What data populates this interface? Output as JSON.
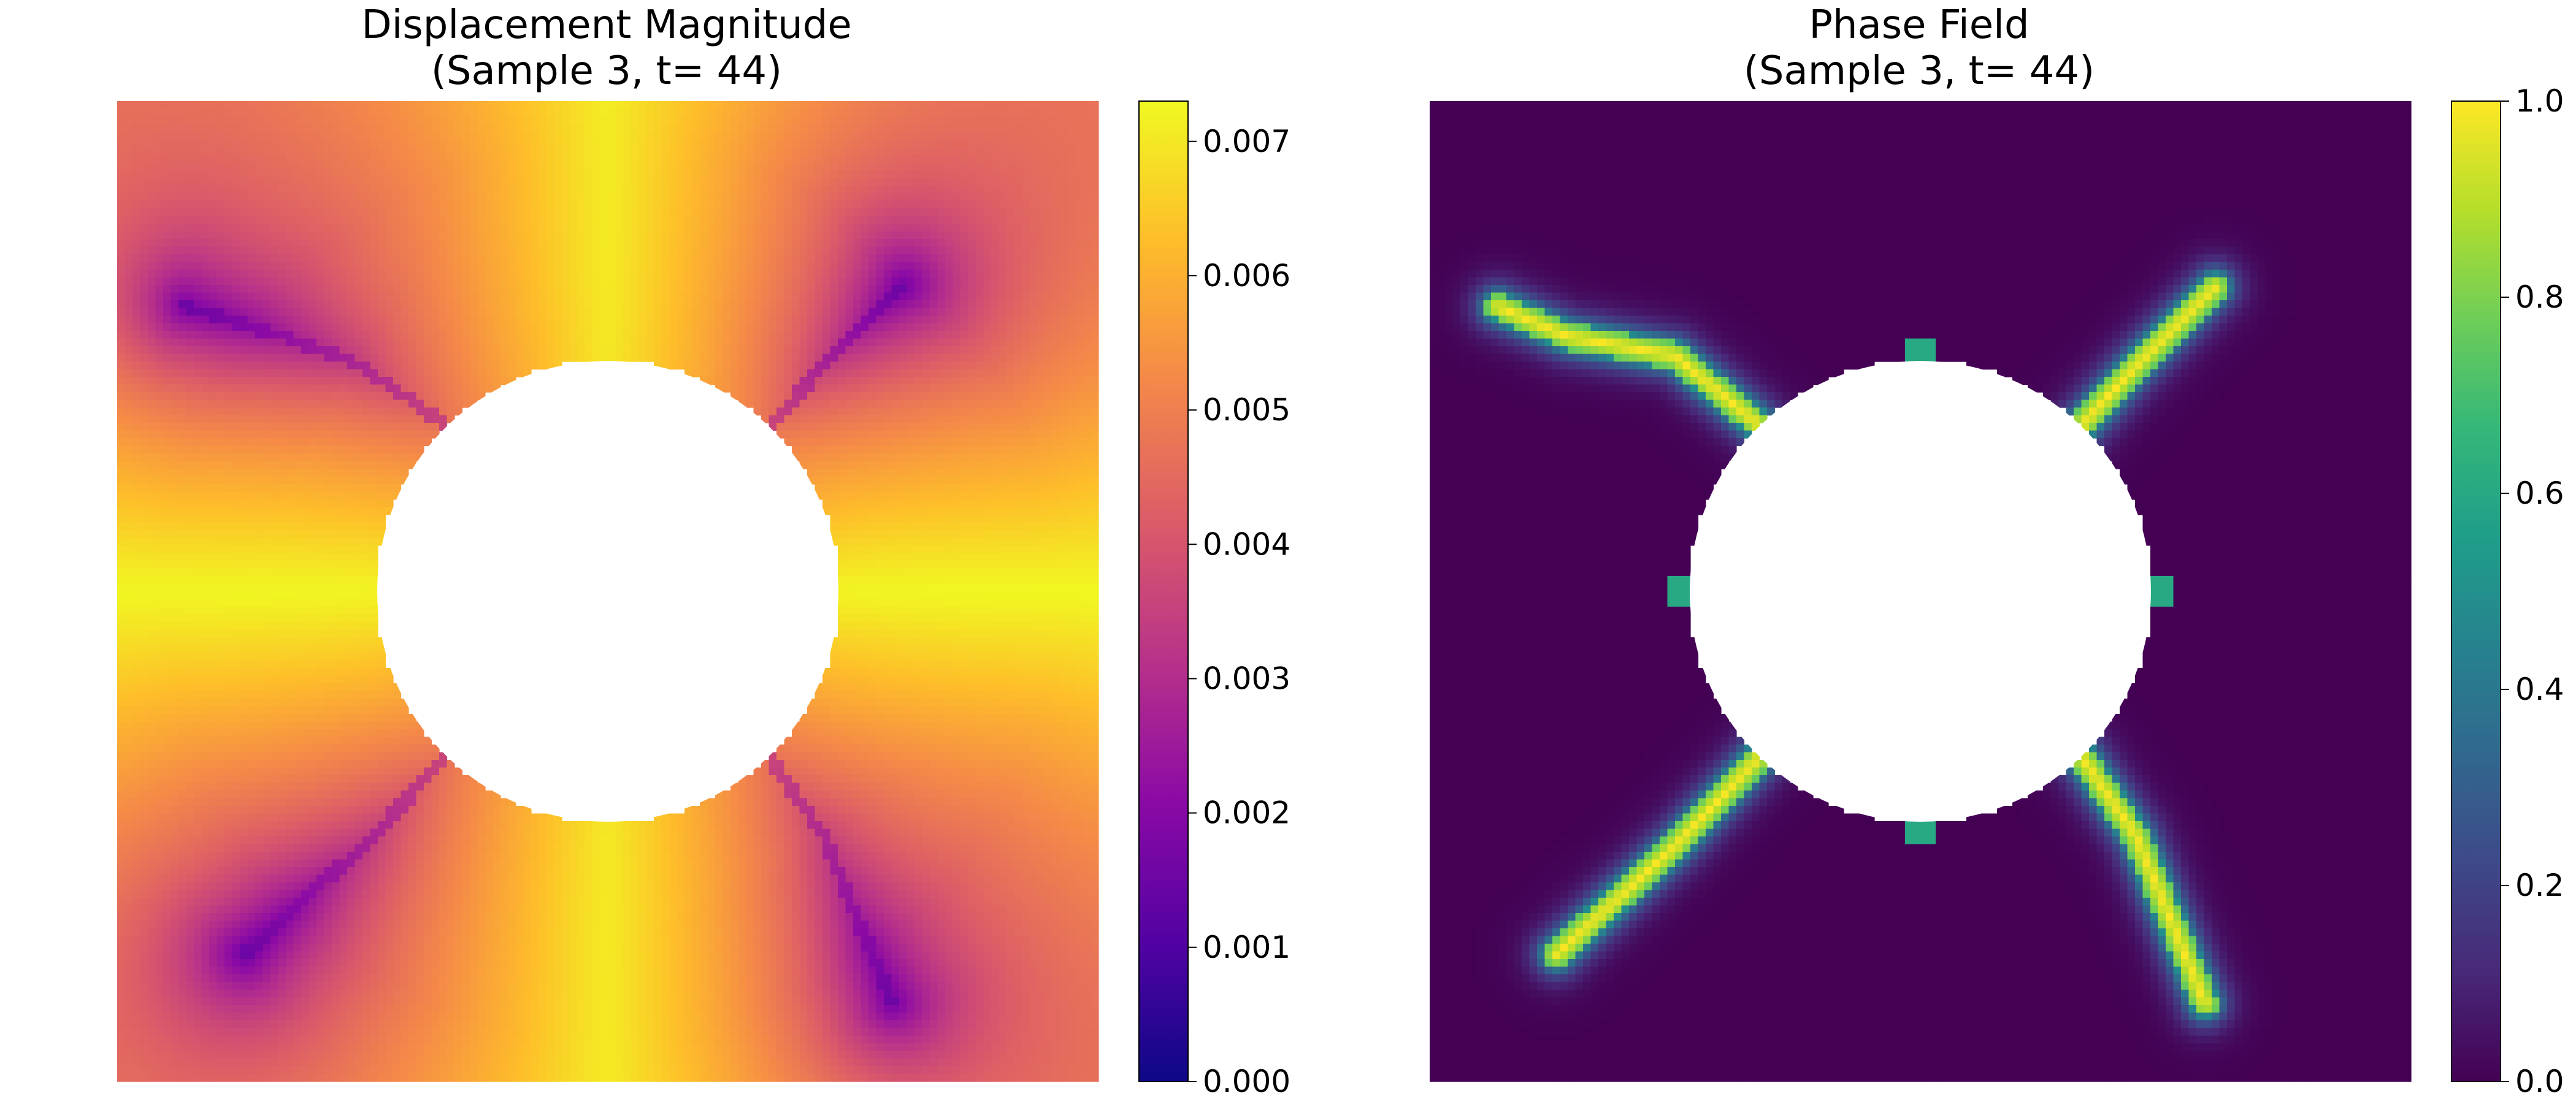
{
  "colors": {
    "plasma": [
      "#0d0887",
      "#5302a3",
      "#8b0aa5",
      "#b83289",
      "#db5c68",
      "#f48849",
      "#febd2a",
      "#f0f921"
    ],
    "viridis": [
      "#440154",
      "#482878",
      "#3e4989",
      "#31688e",
      "#26828e",
      "#1f9e89",
      "#35b779",
      "#6ece58",
      "#b5de2b",
      "#fde725"
    ],
    "hole": "#ffffff"
  },
  "chart_data": [
    {
      "type": "heatmap",
      "title_lines": [
        "Displacement Magnitude",
        "(Sample 3, t= 44)"
      ],
      "colormap": "plasma",
      "colorbar": {
        "vmin": 0.0,
        "vmax": 0.0073,
        "ticks": [
          0.0,
          0.001,
          0.002,
          0.003,
          0.004,
          0.005,
          0.006,
          0.007
        ],
        "tick_labels": [
          "0.000",
          "0.001",
          "0.002",
          "0.003",
          "0.004",
          "0.005",
          "0.006",
          "0.007"
        ]
      },
      "field": {
        "grid_n": 128,
        "circular_hole": {
          "cx": 0.5,
          "cy": 0.5,
          "r": 0.235
        },
        "base": 0.0061,
        "left_right_boost": 0.0012,
        "top_bottom_boost": 0.001,
        "crack_value_scale": 0.45,
        "tip_minimum": 0.0009
      },
      "cracks": [
        {
          "name": "upper-left",
          "points": [
            [
              0.335,
              0.33
            ],
            [
              0.24,
              0.265
            ],
            [
              0.17,
              0.24
            ],
            [
              0.07,
              0.21
            ]
          ]
        },
        {
          "name": "upper-right",
          "points": [
            [
              0.665,
              0.33
            ],
            [
              0.72,
              0.27
            ],
            [
              0.8,
              0.19
            ]
          ]
        },
        {
          "name": "lower-left",
          "points": [
            [
              0.335,
              0.67
            ],
            [
              0.25,
              0.76
            ],
            [
              0.13,
              0.87
            ]
          ]
        },
        {
          "name": "lower-right",
          "points": [
            [
              0.665,
              0.67
            ],
            [
              0.72,
              0.75
            ],
            [
              0.79,
              0.92
            ]
          ]
        }
      ]
    },
    {
      "type": "heatmap",
      "title_lines": [
        "Phase Field",
        "(Sample 3, t= 44)"
      ],
      "colormap": "viridis",
      "colorbar": {
        "vmin": 0.0,
        "vmax": 1.0,
        "ticks": [
          0.0,
          0.2,
          0.4,
          0.6,
          0.8,
          1.0
        ],
        "tick_labels": [
          "0.0",
          "0.2",
          "0.4",
          "0.6",
          "0.8",
          "1.0"
        ]
      },
      "field": {
        "grid_n": 128,
        "circular_hole": {
          "cx": 0.5,
          "cy": 0.5,
          "r": 0.235
        },
        "background": 0.0,
        "crack_value": 1.0,
        "crack_width": 0.013
      },
      "cracks": [
        {
          "name": "upper-left",
          "points": [
            [
              0.335,
              0.33
            ],
            [
              0.25,
              0.26
            ],
            [
              0.14,
              0.24
            ],
            [
              0.07,
              0.21
            ]
          ]
        },
        {
          "name": "upper-right",
          "points": [
            [
              0.665,
              0.33
            ],
            [
              0.72,
              0.27
            ],
            [
              0.8,
              0.19
            ]
          ]
        },
        {
          "name": "lower-left",
          "points": [
            [
              0.335,
              0.67
            ],
            [
              0.25,
              0.76
            ],
            [
              0.13,
              0.87
            ]
          ]
        },
        {
          "name": "lower-right",
          "points": [
            [
              0.665,
              0.67
            ],
            [
              0.72,
              0.75
            ],
            [
              0.79,
              0.92
            ]
          ]
        }
      ],
      "nubs": [
        {
          "x": 0.5,
          "y": 0.255,
          "value": 0.6
        },
        {
          "x": 0.5,
          "y": 0.745,
          "value": 0.6
        },
        {
          "x": 0.255,
          "y": 0.5,
          "value": 0.6
        },
        {
          "x": 0.745,
          "y": 0.5,
          "value": 0.6
        }
      ]
    }
  ]
}
